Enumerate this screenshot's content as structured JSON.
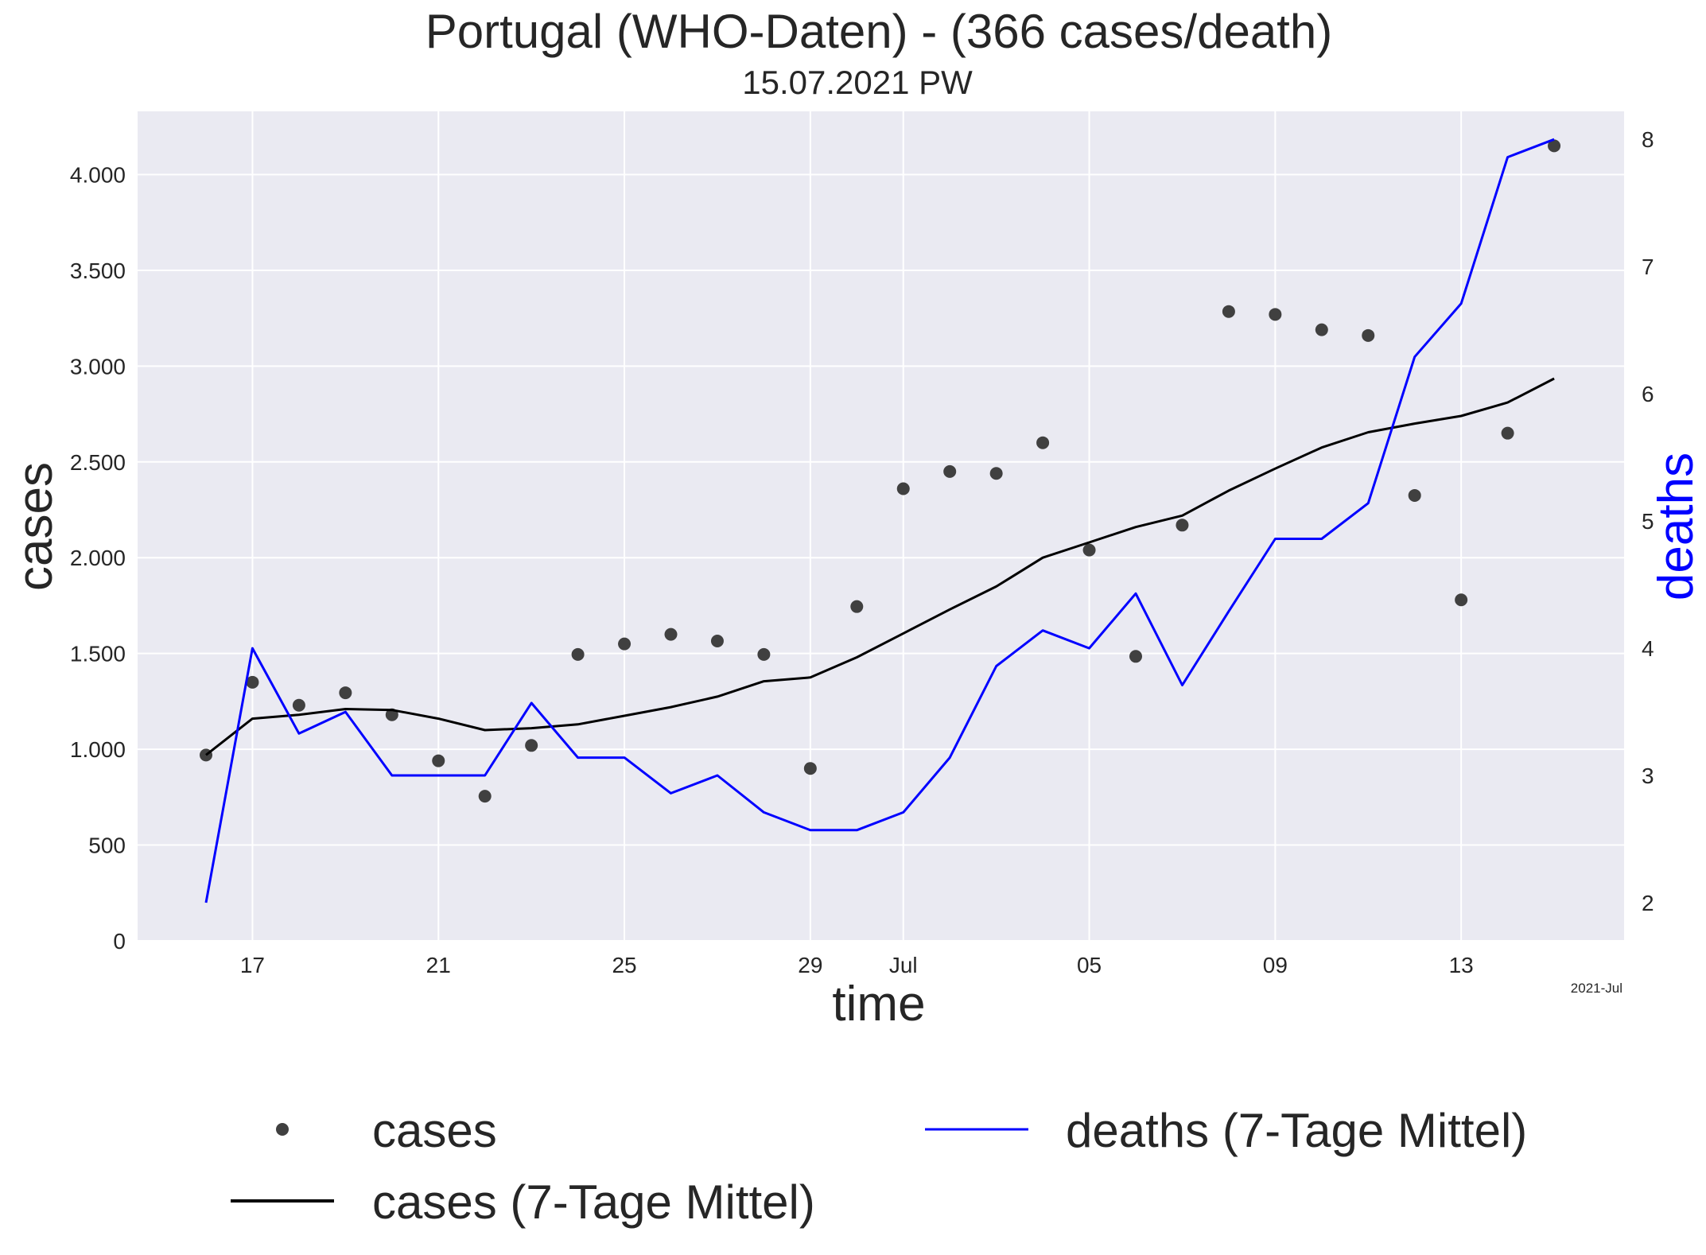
{
  "title": "Portugal (WHO-Daten) - (366 cases/death)",
  "subtitle": "15.07.2021 PW",
  "xlabel": "time",
  "ylabel_left": "cases",
  "ylabel_right": "deaths",
  "x_offset_label": "2021-Jul",
  "x_ticks": [
    {
      "day": 1,
      "label": "17"
    },
    {
      "day": 5,
      "label": "21"
    },
    {
      "day": 9,
      "label": "25"
    },
    {
      "day": 13,
      "label": "29"
    },
    {
      "day": 15,
      "label": "Jul"
    },
    {
      "day": 19,
      "label": "05"
    },
    {
      "day": 23,
      "label": "09"
    },
    {
      "day": 27,
      "label": "13"
    }
  ],
  "y_left_ticks": [
    {
      "value": 0,
      "label": "0"
    },
    {
      "value": 500,
      "label": "500"
    },
    {
      "value": 1000,
      "label": "1.000"
    },
    {
      "value": 1500,
      "label": "1.500"
    },
    {
      "value": 2000,
      "label": "2.000"
    },
    {
      "value": 2500,
      "label": "2.500"
    },
    {
      "value": 3000,
      "label": "3.000"
    },
    {
      "value": 3500,
      "label": "3.500"
    },
    {
      "value": 4000,
      "label": "4.000"
    }
  ],
  "y_right_ticks": [
    {
      "value": 2,
      "label": "2"
    },
    {
      "value": 3,
      "label": "3"
    },
    {
      "value": 4,
      "label": "4"
    },
    {
      "value": 5,
      "label": "5"
    },
    {
      "value": 6,
      "label": "6"
    },
    {
      "value": 7,
      "label": "7"
    },
    {
      "value": 8,
      "label": "8"
    }
  ],
  "legend": {
    "cases": "cases",
    "cases_avg": "cases (7-Tage Mittel)",
    "deaths_avg": "deaths (7-Tage Mittel)"
  },
  "colors": {
    "background": "#eaeaf2",
    "grid": "#ffffff",
    "cases_points": "#404040",
    "cases_avg": "#000000",
    "deaths_avg": "#0000ff",
    "deaths_label": "#0000ff"
  },
  "chart_data": {
    "type": "line",
    "x_axis": "date",
    "x": [
      "2021-06-16",
      "2021-06-17",
      "2021-06-18",
      "2021-06-19",
      "2021-06-20",
      "2021-06-21",
      "2021-06-22",
      "2021-06-23",
      "2021-06-24",
      "2021-06-25",
      "2021-06-26",
      "2021-06-27",
      "2021-06-28",
      "2021-06-29",
      "2021-06-30",
      "2021-07-01",
      "2021-07-02",
      "2021-07-03",
      "2021-07-04",
      "2021-07-05",
      "2021-07-06",
      "2021-07-07",
      "2021-07-08",
      "2021-07-09",
      "2021-07-10",
      "2021-07-11",
      "2021-07-12",
      "2021-07-13",
      "2021-07-14",
      "2021-07-15"
    ],
    "series": [
      {
        "name": "cases",
        "axis": "left",
        "style": "points",
        "values": [
          970,
          1350,
          1230,
          1295,
          1180,
          940,
          755,
          1020,
          1495,
          1550,
          1600,
          1565,
          1495,
          900,
          1745,
          2360,
          2450,
          2440,
          2600,
          2040,
          1485,
          2170,
          3285,
          3270,
          3190,
          3160,
          2325,
          1780,
          2650,
          4150
        ]
      },
      {
        "name": "cases (7-Tage Mittel)",
        "axis": "left",
        "style": "line",
        "values": [
          970,
          1160,
          1180,
          1210,
          1205,
          1160,
          1100,
          1110,
          1130,
          1175,
          1220,
          1275,
          1355,
          1375,
          1480,
          1605,
          1730,
          1850,
          2000,
          2080,
          2160,
          2220,
          2350,
          2465,
          2575,
          2655,
          2700,
          2740,
          2810,
          2935
        ]
      },
      {
        "name": "deaths (7-Tage Mittel)",
        "axis": "right",
        "style": "line",
        "values": [
          2.0,
          4.0,
          3.33,
          3.5,
          3.0,
          3.0,
          3.0,
          3.57,
          3.14,
          3.14,
          2.86,
          3.0,
          2.71,
          2.57,
          2.57,
          2.71,
          3.14,
          3.86,
          4.14,
          4.0,
          4.43,
          3.71,
          4.29,
          4.86,
          4.86,
          5.14,
          6.29,
          6.71,
          7.86,
          8.0
        ]
      }
    ],
    "ylim_left": [
      0,
      4330
    ],
    "ylim_right": [
      1.7,
      8.22
    ],
    "grid": true,
    "legend_position": "below"
  }
}
